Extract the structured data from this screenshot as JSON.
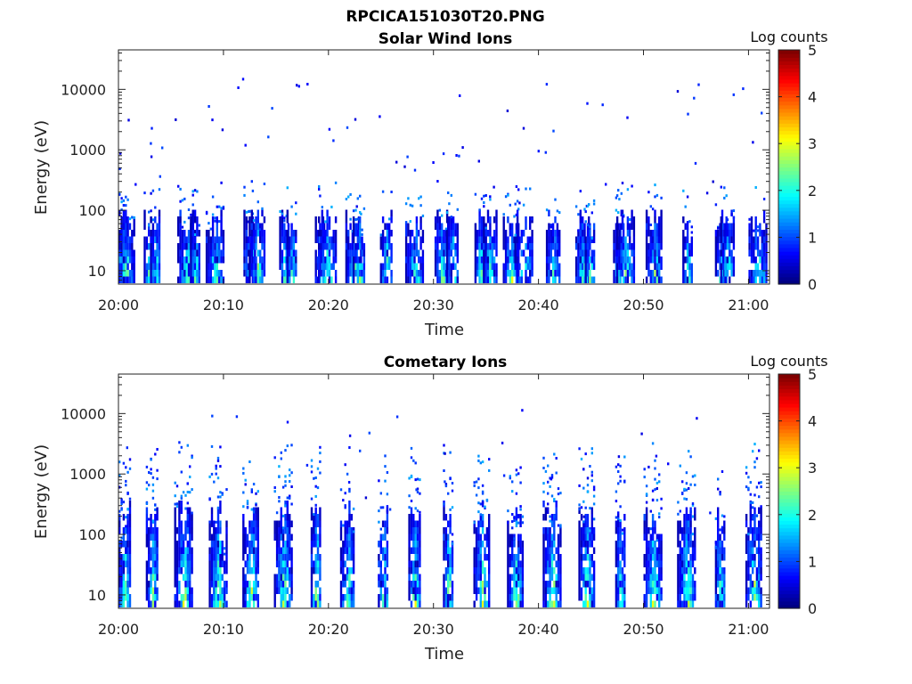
{
  "figure_title": "RPCICA151030T20.PNG",
  "chart_data": [
    {
      "type": "heatmap",
      "title": "Solar Wind Ions",
      "xlabel": "Time",
      "ylabel": "Energy (eV)",
      "x_ticks": [
        "20:00",
        "20:10",
        "20:20",
        "20:30",
        "20:40",
        "20:50",
        "21:00"
      ],
      "y_ticks": [
        "10",
        "100",
        "1000",
        "10000"
      ],
      "y_scale": "log",
      "ylim": [
        6,
        45000
      ],
      "xlim": [
        "20:00",
        "21:02"
      ],
      "colorbar": {
        "label": "Log counts",
        "ticks": [
          "0",
          "1",
          "2",
          "3",
          "4",
          "5"
        ],
        "range": [
          0,
          5
        ],
        "colormap": "jet"
      },
      "bursts_minutes": [
        0.2,
        0.7,
        2.9,
        3.5,
        6.5,
        7.3,
        9.2,
        12.5,
        13.2,
        15.8,
        16.5,
        19.2,
        19.9,
        22.4,
        22.9,
        25.5,
        28.2,
        30.8,
        31.8,
        34.5,
        35.4,
        37.4,
        38.6,
        41.4,
        44.2,
        44.9,
        47.6,
        48.3,
        51.0,
        54.2,
        57.4,
        58.0,
        60.9
      ],
      "peak_log_counts": 3.0
    },
    {
      "type": "heatmap",
      "title": "Cometary Ions",
      "xlabel": "Time",
      "ylabel": "Energy (eV)",
      "x_ticks": [
        "20:00",
        "20:10",
        "20:20",
        "20:30",
        "20:40",
        "20:50",
        "21:00"
      ],
      "y_ticks": [
        "10",
        "100",
        "1000",
        "10000"
      ],
      "y_scale": "log",
      "ylim": [
        6,
        45000
      ],
      "xlim": [
        "20:00",
        "21:02"
      ],
      "colorbar": {
        "label": "Log counts",
        "ticks": [
          "0",
          "1",
          "2",
          "3",
          "4",
          "5"
        ],
        "range": [
          0,
          5
        ],
        "colormap": "jet"
      },
      "bursts_minutes": [
        0.6,
        3.2,
        6.2,
        9.5,
        12.6,
        15.7,
        18.8,
        21.8,
        25.2,
        28.2,
        31.4,
        34.6,
        37.8,
        41.3,
        44.6,
        47.8,
        50.9,
        54.1,
        57.3,
        60.5
      ],
      "peak_log_counts": 3.3
    }
  ]
}
